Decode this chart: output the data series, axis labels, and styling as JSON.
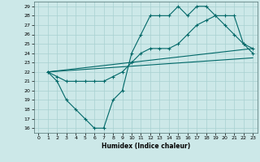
{
  "xlabel": "Humidex (Indice chaleur)",
  "bg_color": "#cce8e8",
  "line_color": "#006868",
  "grid_color": "#a8d0d0",
  "xlim": [
    -0.5,
    23.5
  ],
  "ylim": [
    15.5,
    29.5
  ],
  "xticks": [
    0,
    1,
    2,
    3,
    4,
    5,
    6,
    7,
    8,
    9,
    10,
    11,
    12,
    13,
    14,
    15,
    16,
    17,
    18,
    19,
    20,
    21,
    22,
    23
  ],
  "yticks": [
    16,
    17,
    18,
    19,
    20,
    21,
    22,
    23,
    24,
    25,
    26,
    27,
    28,
    29
  ],
  "line1_x": [
    1,
    2,
    3,
    4,
    5,
    6,
    7,
    8,
    9,
    10,
    11,
    12,
    13,
    14,
    15,
    16,
    17,
    18,
    19,
    20,
    21,
    22,
    23
  ],
  "line1_y": [
    22,
    21,
    19,
    18,
    17,
    16,
    16,
    19,
    20,
    24,
    26,
    28,
    28,
    28,
    29,
    28,
    29,
    29,
    28,
    27,
    26,
    25,
    24
  ],
  "line2_x": [
    1,
    2,
    3,
    4,
    5,
    6,
    7,
    8,
    9,
    10,
    11,
    12,
    13,
    14,
    15,
    16,
    17,
    18,
    19,
    20,
    21,
    22,
    23
  ],
  "line2_y": [
    22,
    21.5,
    21,
    21,
    21,
    21,
    21,
    21.5,
    22,
    23,
    24,
    24.5,
    24.5,
    24.5,
    25,
    26,
    27,
    27.5,
    28,
    28,
    28,
    25,
    24.5
  ],
  "line3_x": [
    1,
    23
  ],
  "line3_y": [
    22,
    24.5
  ],
  "line4_x": [
    1,
    23
  ],
  "line4_y": [
    22,
    23.5
  ]
}
